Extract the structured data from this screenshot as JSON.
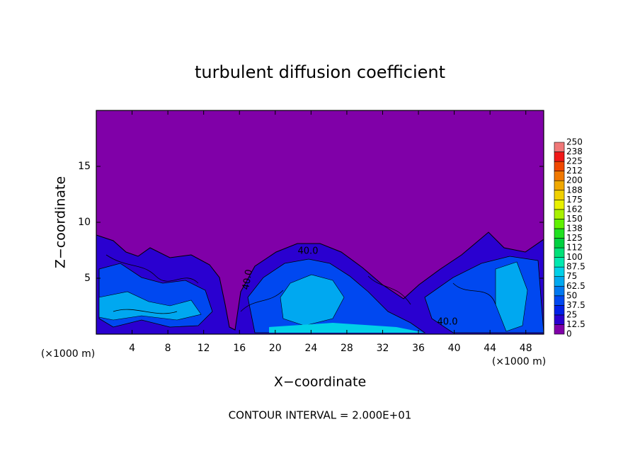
{
  "chart_data": {
    "type": "contour",
    "title": "turbulent diffusion coefficient",
    "xlabel": "X−coordinate",
    "ylabel": "Z−coordinate",
    "xunit_label": "(×1000 m)",
    "yunit_label": "(×1000 m)",
    "xlim": [
      0,
      50
    ],
    "ylim": [
      0,
      20
    ],
    "xticks": [
      4,
      8,
      12,
      16,
      20,
      24,
      28,
      32,
      36,
      40,
      44,
      48
    ],
    "yticks": [
      5,
      10,
      15
    ],
    "colorbar": {
      "levels": [
        0,
        12.5,
        25,
        37.5,
        50,
        62.5,
        75,
        87.5,
        100,
        112,
        125,
        138,
        150,
        162,
        175,
        188,
        200,
        212,
        225,
        238,
        250
      ],
      "colors": [
        "#8000a8",
        "#2a00d0",
        "#0020e8",
        "#0048f0",
        "#0078f0",
        "#00a8f0",
        "#00d0e8",
        "#00e8b0",
        "#00e078",
        "#00d040",
        "#20e020",
        "#60f000",
        "#a8f000",
        "#e8f000",
        "#f0d000",
        "#f0a800",
        "#f07800",
        "#f04800",
        "#f01818",
        "#f07878"
      ]
    },
    "contour_labels": [
      "40.0",
      "40.0",
      "40.0"
    ],
    "contour_interval_label": "CONTOUR INTERVAL = 2.000E+01"
  }
}
